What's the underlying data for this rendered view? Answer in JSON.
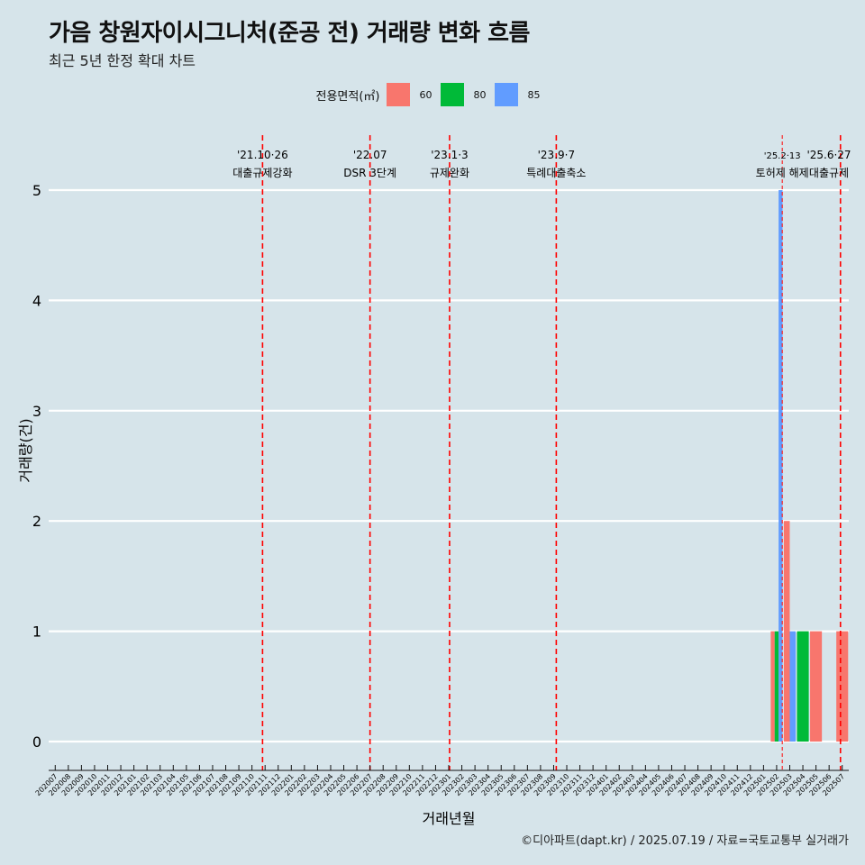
{
  "header": {
    "title": "가음 창원자이시그니처(준공 전) 거래량 변화 흐름",
    "subtitle": "최근 5년 한정 확대 차트"
  },
  "legend": {
    "title": "전용면적(㎡)",
    "items": [
      {
        "label": "60",
        "color": "#F8766D"
      },
      {
        "label": "80",
        "color": "#00BA38"
      },
      {
        "label": "85",
        "color": "#619CFF"
      }
    ]
  },
  "caption": "©디아파트(dapt.kr) / 2025.07.19 / 자료=국토교통부 실거래가",
  "chart_data": {
    "type": "bar",
    "xlabel": "거래년월",
    "ylabel": "거래량(건)",
    "ylim": [
      0,
      5
    ],
    "yticks": [
      0,
      1,
      2,
      3,
      4,
      5
    ],
    "grid": true,
    "legend_position": "top",
    "categories": [
      "202007",
      "202008",
      "202009",
      "202010",
      "202011",
      "202012",
      "202101",
      "202102",
      "202103",
      "202104",
      "202105",
      "202106",
      "202107",
      "202108",
      "202109",
      "202110",
      "202111",
      "202112",
      "202201",
      "202202",
      "202203",
      "202204",
      "202205",
      "202206",
      "202207",
      "202208",
      "202209",
      "202210",
      "202211",
      "202212",
      "202301",
      "202302",
      "202303",
      "202304",
      "202305",
      "202306",
      "202307",
      "202308",
      "202309",
      "202310",
      "202311",
      "202312",
      "202401",
      "202402",
      "202403",
      "202404",
      "202405",
      "202406",
      "202407",
      "202408",
      "202409",
      "202410",
      "202411",
      "202412",
      "202501",
      "202502",
      "202503",
      "202504",
      "202505",
      "202506",
      "202507"
    ],
    "series": [
      {
        "name": "60",
        "color": "#F8766D",
        "values": {
          "202502": 1,
          "202503": 2,
          "202505": 1,
          "202507": 1
        }
      },
      {
        "name": "80",
        "color": "#00BA38",
        "values": {
          "202502": 1,
          "202504": 1
        }
      },
      {
        "name": "85",
        "color": "#619CFF",
        "values": {
          "202502": 5,
          "202503": 1
        }
      }
    ],
    "annotations": [
      {
        "date": "2021-10-26",
        "line1": "'21.10·26",
        "line2": "대출규제강화"
      },
      {
        "date": "2022-07-01",
        "line1": "'22.07",
        "line2": "DSR 3단계"
      },
      {
        "date": "2023-01-03",
        "line1": "'23.1·3",
        "line2": "규제완화"
      },
      {
        "date": "2023-09-07",
        "line1": "'23.9·7",
        "line2": "특례대출축소"
      },
      {
        "date": "2025-02-13",
        "line1": "'25.2·13",
        "line2": "토허제 해제",
        "small": true
      },
      {
        "date": "2025-06-27",
        "line1": "'25.6·27",
        "line2": "대출규제"
      }
    ]
  }
}
